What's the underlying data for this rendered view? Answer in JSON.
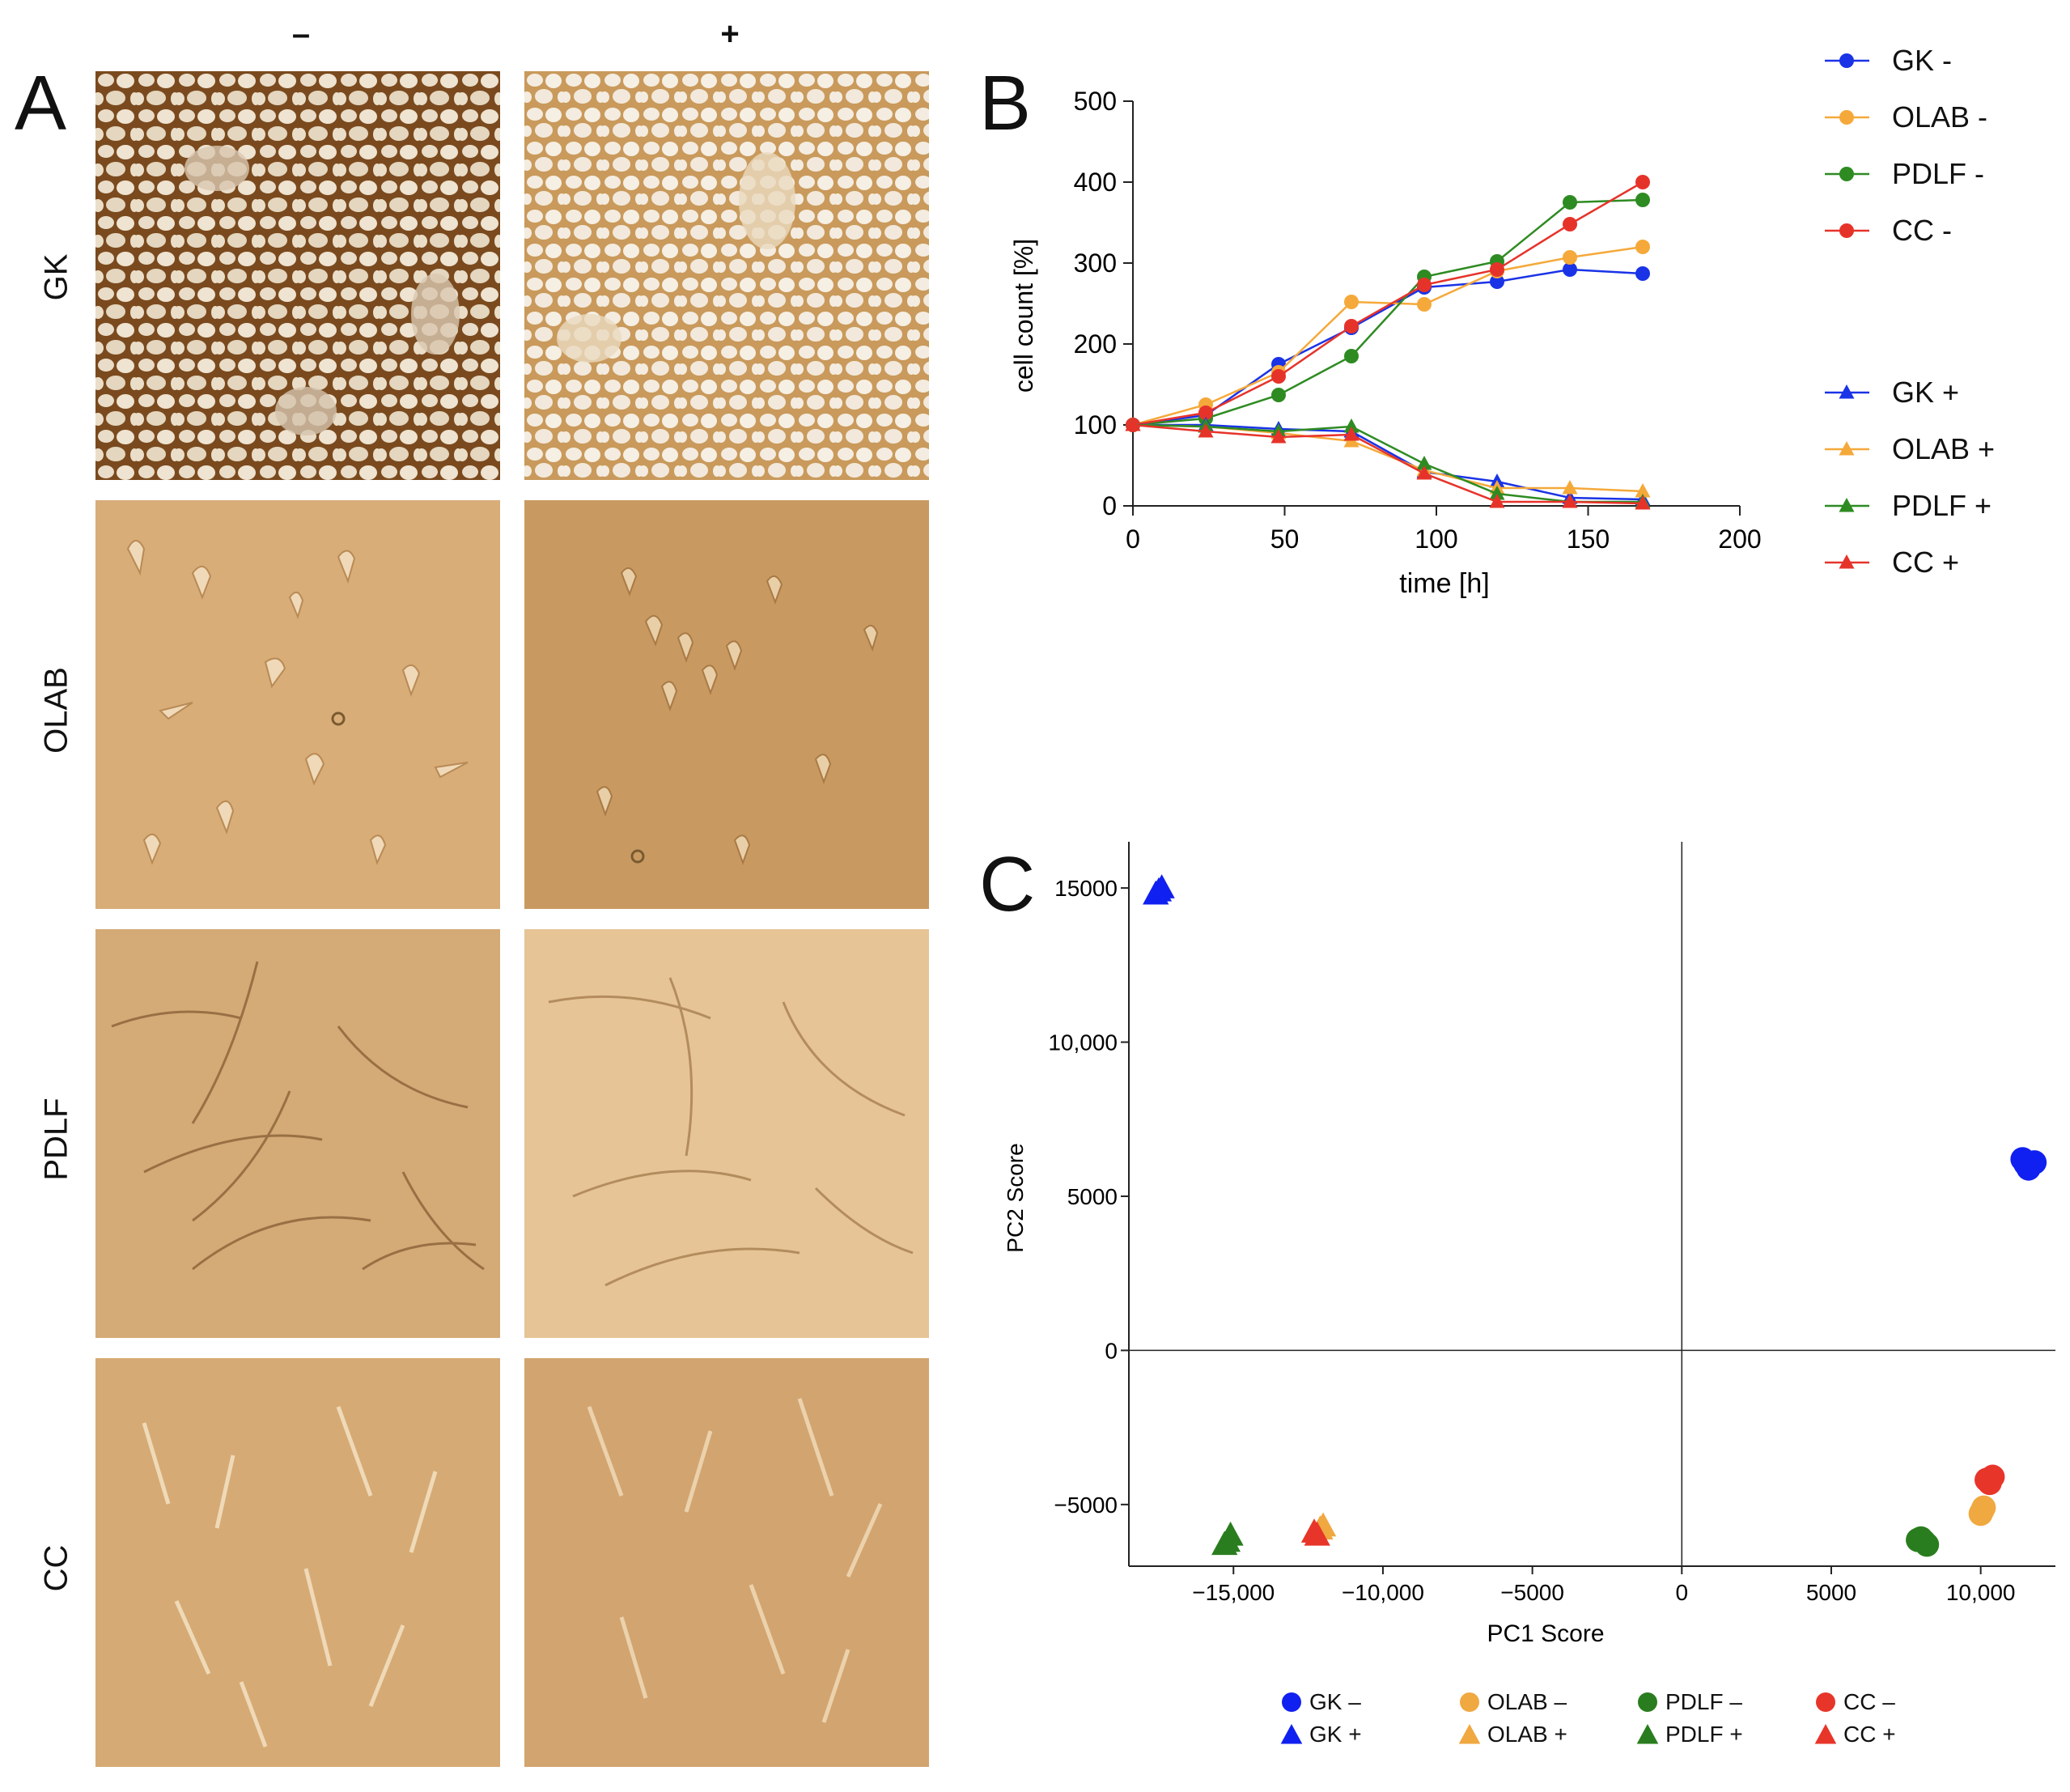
{
  "panels": {
    "a": "A",
    "b": "B",
    "c": "C"
  },
  "micrographs": {
    "columns": [
      "–",
      "+"
    ],
    "rows": [
      "GK",
      "OLAB",
      "PDLF",
      "CC"
    ]
  },
  "chart_data": [
    {
      "type": "line",
      "panel": "B",
      "xlabel": "time [h]",
      "ylabel": "cell count [%]",
      "xlim": [
        0,
        200
      ],
      "ylim": [
        0,
        500
      ],
      "xticks": [
        0,
        50,
        100,
        150,
        200
      ],
      "yticks": [
        0,
        100,
        200,
        300,
        400,
        500
      ],
      "x": [
        0,
        24,
        48,
        72,
        96,
        120,
        144,
        168
      ],
      "series": [
        {
          "name": "GK -",
          "marker": "circle",
          "color": "#1a33e6",
          "values": [
            100,
            112,
            175,
            220,
            270,
            277,
            292,
            287
          ]
        },
        {
          "name": "OLAB -",
          "marker": "circle",
          "color": "#f5a93a",
          "values": [
            100,
            125,
            165,
            252,
            249,
            290,
            307,
            320
          ]
        },
        {
          "name": "PDLF -",
          "marker": "circle",
          "color": "#2e8b22",
          "values": [
            100,
            108,
            137,
            185,
            283,
            302,
            375,
            378
          ]
        },
        {
          "name": "CC -",
          "marker": "circle",
          "color": "#e6332a",
          "values": [
            100,
            115,
            160,
            222,
            273,
            292,
            348,
            400
          ]
        },
        {
          "name": "GK +",
          "marker": "triangle",
          "color": "#1a33e6",
          "values": [
            100,
            100,
            95,
            92,
            42,
            30,
            10,
            8
          ]
        },
        {
          "name": "OLAB +",
          "marker": "triangle",
          "color": "#f5a93a",
          "values": [
            100,
            98,
            90,
            80,
            44,
            22,
            22,
            18
          ]
        },
        {
          "name": "PDLF +",
          "marker": "triangle",
          "color": "#2e8b22",
          "values": [
            100,
            98,
            92,
            98,
            52,
            15,
            5,
            5
          ]
        },
        {
          "name": "CC +",
          "marker": "triangle",
          "color": "#e6332a",
          "values": [
            100,
            92,
            85,
            88,
            40,
            5,
            5,
            3
          ]
        }
      ]
    },
    {
      "type": "scatter",
      "panel": "C",
      "xlabel": "PC1 Score",
      "ylabel": "PC2 Score",
      "xlim": [
        -18500,
        12500
      ],
      "ylim": [
        -7000,
        16500
      ],
      "xticks": [
        -15000,
        -10000,
        -5000,
        0,
        5000,
        10000
      ],
      "xtick_labels": [
        "−15,000",
        "−10,000",
        "−5000",
        "0",
        "5000",
        "10,000"
      ],
      "yticks": [
        -5000,
        0,
        5000,
        10000,
        15000
      ],
      "ytick_labels": [
        "−5000",
        "0",
        "5000",
        "10,000",
        "15000"
      ],
      "series": [
        {
          "name": "GK –",
          "marker": "circle",
          "color": "#1020f0",
          "points": [
            [
              11400,
              6200
            ],
            [
              11600,
              5900
            ],
            [
              11800,
              6100
            ],
            [
              11500,
              6050
            ]
          ]
        },
        {
          "name": "GK +",
          "marker": "triangle",
          "color": "#1020f0",
          "points": [
            [
              -17600,
              14800
            ],
            [
              -17400,
              15000
            ],
            [
              -17500,
              14900
            ]
          ]
        },
        {
          "name": "OLAB –",
          "marker": "circle",
          "color": "#f0a840",
          "points": [
            [
              10000,
              -5300
            ],
            [
              10100,
              -5100
            ],
            [
              10050,
              -5200
            ]
          ]
        },
        {
          "name": "OLAB +",
          "marker": "triangle",
          "color": "#f0a840",
          "points": [
            [
              -12100,
              -5800
            ],
            [
              -12000,
              -5700
            ]
          ]
        },
        {
          "name": "PDLF –",
          "marker": "circle",
          "color": "#2a7d1e",
          "points": [
            [
              8000,
              -6100
            ],
            [
              8200,
              -6300
            ],
            [
              8100,
              -6200
            ],
            [
              7900,
              -6150
            ]
          ]
        },
        {
          "name": "PDLF +",
          "marker": "triangle",
          "color": "#2a7d1e",
          "points": [
            [
              -15200,
              -6200
            ],
            [
              -15100,
              -6000
            ],
            [
              -15300,
              -6300
            ]
          ]
        },
        {
          "name": "CC –",
          "marker": "circle",
          "color": "#e8352a",
          "points": [
            [
              10200,
              -4200
            ],
            [
              10400,
              -4100
            ],
            [
              10300,
              -4300
            ]
          ]
        },
        {
          "name": "CC +",
          "marker": "triangle",
          "color": "#e8352a",
          "points": [
            [
              -12300,
              -5900
            ],
            [
              -12200,
              -6000
            ]
          ]
        }
      ]
    }
  ]
}
